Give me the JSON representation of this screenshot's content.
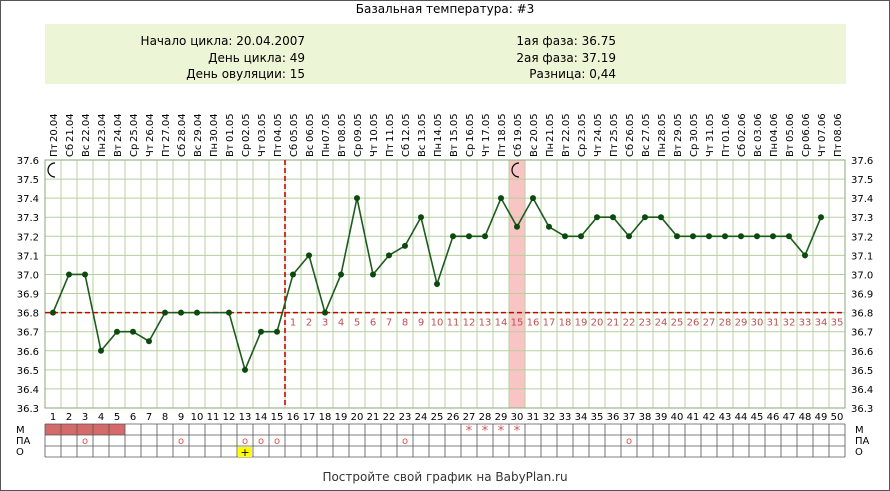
{
  "title": "Базальная температура: #3",
  "info": {
    "left": [
      "Начало цикла: 20.04.2007",
      "День цикла: 49",
      "День овуляции: 15"
    ],
    "right": [
      "1ая фаза: 36.75",
      "2ая фаза: 37.19",
      "Разница: 0,44"
    ]
  },
  "footer": "Постройте свой график на BabyPlan.ru",
  "colors": {
    "line": "#1e5c1e",
    "marker": "#0a4a0a",
    "threshold": "#cc0000",
    "grid": "#b8cfa0",
    "phase2_label": "#c05050",
    "menses": "#d56a6a",
    "highlight_day": "#f8c4c4",
    "star": "#e05050",
    "plus_box": "#ffff00"
  },
  "chart_data": {
    "type": "line",
    "x_day": [
      1,
      2,
      3,
      4,
      5,
      6,
      7,
      8,
      9,
      10,
      11,
      12,
      13,
      14,
      15,
      16,
      17,
      18,
      19,
      20,
      21,
      22,
      23,
      24,
      25,
      26,
      27,
      28,
      29,
      30,
      31,
      32,
      33,
      34,
      35,
      36,
      37,
      38,
      39,
      40,
      41,
      42,
      43,
      44,
      45,
      46,
      47,
      48,
      49,
      50
    ],
    "dates": [
      "20.04",
      "21.04",
      "22.04",
      "23.04",
      "24.04",
      "25.04",
      "26.04",
      "27.04",
      "28.04",
      "29.04",
      "30.04",
      "01.05",
      "02.05",
      "03.05",
      "04.05",
      "05.05",
      "06.05",
      "07.05",
      "08.05",
      "09.05",
      "10.05",
      "11.05",
      "12.05",
      "13.05",
      "14.05",
      "15.05",
      "16.05",
      "17.05",
      "18.05",
      "19.05",
      "20.05",
      "21.05",
      "22.05",
      "23.05",
      "24.05",
      "25.05",
      "26.05",
      "27.05",
      "28.05",
      "29.05",
      "30.05",
      "31.05",
      "01.06",
      "02.06",
      "03.06",
      "04.06",
      "05.06",
      "06.06",
      "07.06",
      "08.06"
    ],
    "weekdays": [
      "Пт",
      "Сб",
      "Вс",
      "Пн",
      "Вт",
      "Ср",
      "Чт",
      "Пт",
      "Сб",
      "Вс",
      "Пн",
      "Вт",
      "Ср",
      "Чт",
      "Пт",
      "Сб",
      "Вс",
      "Пн",
      "Вт",
      "Ср",
      "Чт",
      "Пт",
      "Сб",
      "Вс",
      "Пн",
      "Вт",
      "Ср",
      "Чт",
      "Пт",
      "Сб",
      "Вс",
      "Пн",
      "Вт",
      "Ср",
      "Чт",
      "Пт",
      "Сб",
      "Вс",
      "Пн",
      "Вт",
      "Ср",
      "Чт",
      "Пт",
      "Сб",
      "Вс",
      "Пн",
      "Вт",
      "Ср",
      "Чт",
      "Пт"
    ],
    "values": [
      36.8,
      37.0,
      37.0,
      36.6,
      36.7,
      36.7,
      36.65,
      36.8,
      36.8,
      36.8,
      null,
      36.8,
      36.5,
      36.7,
      36.7,
      37.0,
      37.1,
      36.8,
      37.0,
      37.4,
      37.0,
      37.1,
      37.15,
      37.3,
      36.95,
      37.2,
      37.2,
      37.2,
      37.4,
      37.25,
      37.4,
      37.25,
      37.2,
      37.2,
      37.3,
      37.3,
      37.2,
      37.3,
      37.3,
      37.2,
      37.2,
      37.2,
      37.2,
      37.2,
      37.2,
      37.2,
      37.2,
      37.1,
      37.3,
      null
    ],
    "phase2_labels": [
      "1",
      "2",
      "3",
      "4",
      "5",
      "6",
      "7",
      "8",
      "9",
      "10",
      "11",
      "12",
      "13",
      "14",
      "15",
      "16",
      "17",
      "18",
      "19",
      "20",
      "21",
      "22",
      "23",
      "24",
      "25",
      "26",
      "27",
      "28",
      "29",
      "30",
      "31",
      "32",
      "33",
      "34",
      "35"
    ],
    "y_ticks": [
      "36.3",
      "36.4",
      "36.5",
      "36.6",
      "36.7",
      "36.8",
      "36.9",
      "37.0",
      "37.1",
      "37.2",
      "37.3",
      "37.4",
      "37.5",
      "37.6"
    ],
    "ylim": [
      36.3,
      37.6
    ],
    "coverline": 36.8,
    "ovulation_day": 15,
    "highlight_day": 30,
    "moon_days": [
      1,
      30
    ],
    "row_labels": [
      "М",
      "ПА",
      "О"
    ],
    "menses_days": [
      1,
      2,
      3,
      4,
      5
    ],
    "stars_days": [
      27,
      28,
      29,
      30
    ],
    "star_symbol": "*",
    "pa_days": [
      3,
      9,
      13,
      14,
      15,
      23,
      37
    ],
    "pa_symbol": "o",
    "o_plus_days": [
      13
    ],
    "plus_symbol": "+",
    "grid": true
  }
}
